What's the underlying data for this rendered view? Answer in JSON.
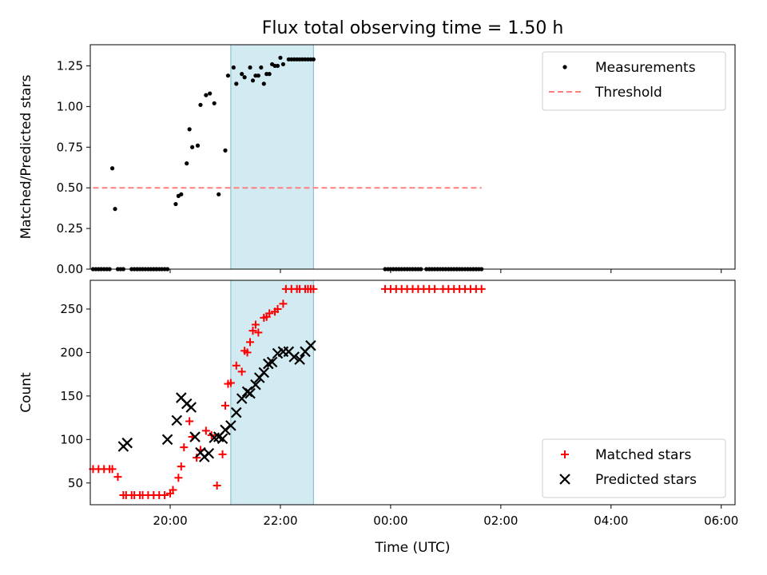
{
  "chart_data": [
    {
      "type": "scatter",
      "title": "Flux total observing time = 1.50 h",
      "xlabel": "",
      "ylabel": "Matched/Predicted stars",
      "ylim": [
        0,
        1.38
      ],
      "xlim": [
        -1.45,
        10.25
      ],
      "yticks": [
        0.0,
        0.25,
        0.5,
        0.75,
        1.0,
        1.25
      ],
      "ytick_labels": [
        "0.00",
        "0.25",
        "0.50",
        "0.75",
        "1.00",
        "1.25"
      ],
      "shaded_interval": [
        1.1,
        2.6
      ],
      "shade_color": "#add8e6",
      "legend": {
        "loc": "upper right",
        "entries": [
          "Measurements",
          "Threshold"
        ]
      },
      "series": [
        {
          "name": "Measurements",
          "marker": "dot",
          "color": "#000000",
          "x": [
            -1.4,
            -1.35,
            -1.3,
            -1.25,
            -1.2,
            -1.15,
            -1.1,
            -1.05,
            -1.0,
            -0.95,
            -0.9,
            -0.85,
            -0.7,
            -0.65,
            -0.6,
            -0.55,
            -0.5,
            -0.45,
            -0.4,
            -0.35,
            -0.3,
            -0.25,
            -0.2,
            -0.15,
            -0.1,
            -0.05,
            0.1,
            0.15,
            0.2,
            0.3,
            0.35,
            0.4,
            0.5,
            0.55,
            0.65,
            0.72,
            0.8,
            0.88,
            1.0,
            1.05,
            1.15,
            1.2,
            1.3,
            1.35,
            1.45,
            1.5,
            1.55,
            1.6,
            1.65,
            1.7,
            1.75,
            1.8,
            1.85,
            1.9,
            1.95,
            2.0,
            2.05,
            2.15,
            2.2,
            2.25,
            2.3,
            2.35,
            2.4,
            2.45,
            2.5,
            2.55,
            2.6,
            3.9,
            3.95,
            4.0,
            4.05,
            4.1,
            4.15,
            4.2,
            4.25,
            4.3,
            4.35,
            4.4,
            4.45,
            4.5,
            4.55,
            4.65,
            4.7,
            4.75,
            4.8,
            4.85,
            4.9,
            4.95,
            5.0,
            5.05,
            5.1,
            5.15,
            5.2,
            5.25,
            5.3,
            5.35,
            5.4,
            5.45,
            5.5,
            5.55,
            5.6,
            5.65
          ],
          "y": [
            0,
            0,
            0,
            0,
            0,
            0,
            0,
            0.62,
            0.37,
            0,
            0,
            0,
            0,
            0,
            0,
            0,
            0,
            0,
            0,
            0,
            0,
            0,
            0,
            0,
            0,
            0,
            0.4,
            0.45,
            0.46,
            0.65,
            0.86,
            0.75,
            0.76,
            1.01,
            1.07,
            1.08,
            1.02,
            0.46,
            0.73,
            1.19,
            1.24,
            1.14,
            1.2,
            1.18,
            1.24,
            1.16,
            1.19,
            1.19,
            1.24,
            1.14,
            1.2,
            1.2,
            1.26,
            1.25,
            1.25,
            1.3,
            1.26,
            1.29,
            1.29,
            1.29,
            1.29,
            1.29,
            1.29,
            1.29,
            1.29,
            1.29,
            1.29,
            0,
            0,
            0,
            0,
            0,
            0,
            0,
            0,
            0,
            0,
            0,
            0,
            0,
            0,
            0,
            0,
            0,
            0,
            0,
            0,
            0,
            0,
            0,
            0,
            0,
            0,
            0,
            0,
            0,
            0,
            0,
            0,
            0,
            0,
            0
          ]
        },
        {
          "name": "Threshold",
          "style": "dashed",
          "color": "#ff7f7f",
          "x": [
            -1.4,
            5.65
          ],
          "y": [
            0.5,
            0.5
          ]
        }
      ]
    },
    {
      "type": "scatter",
      "title": "",
      "xlabel": "Time (UTC)",
      "ylabel": "Count",
      "ylim": [
        25,
        283
      ],
      "xlim": [
        -1.45,
        10.25
      ],
      "yticks": [
        50,
        100,
        150,
        200,
        250
      ],
      "ytick_labels": [
        "50",
        "100",
        "150",
        "200",
        "250"
      ],
      "xticks": [
        0,
        2,
        4,
        6,
        8,
        10
      ],
      "xtick_labels": [
        "20:00",
        "22:00",
        "00:00",
        "02:00",
        "04:00",
        "06:00"
      ],
      "shaded_interval": [
        1.1,
        2.6
      ],
      "shade_color": "#add8e6",
      "legend": {
        "loc": "lower right",
        "entries": [
          "Matched stars",
          "Predicted stars"
        ]
      },
      "series": [
        {
          "name": "Matched stars",
          "marker": "plus",
          "color": "#ff0000",
          "x": [
            -1.4,
            -1.3,
            -1.2,
            -1.1,
            -1.05,
            -0.95,
            -0.85,
            -0.8,
            -0.7,
            -0.65,
            -0.55,
            -0.5,
            -0.4,
            -0.3,
            -0.2,
            -0.1,
            0.0,
            0.05,
            0.15,
            0.2,
            0.25,
            0.35,
            0.4,
            0.48,
            0.55,
            0.65,
            0.75,
            0.85,
            0.95,
            1.0,
            1.05,
            1.1,
            1.2,
            1.3,
            1.35,
            1.4,
            1.45,
            1.5,
            1.55,
            1.6,
            1.7,
            1.75,
            1.8,
            1.9,
            1.95,
            2.05,
            2.1,
            2.2,
            2.3,
            2.35,
            2.45,
            2.5,
            2.55,
            2.6,
            3.9,
            4.0,
            4.1,
            4.2,
            4.3,
            4.4,
            4.5,
            4.6,
            4.7,
            4.8,
            4.95,
            5.05,
            5.15,
            5.25,
            5.35,
            5.45,
            5.55,
            5.65
          ],
          "y": [
            66,
            66,
            66,
            66,
            66,
            57,
            36,
            36,
            36,
            36,
            36,
            36,
            36,
            36,
            36,
            36,
            38,
            42,
            56,
            69,
            91,
            121,
            103,
            79,
            88,
            110,
            105,
            47,
            83,
            139,
            164,
            165,
            185,
            178,
            202,
            200,
            212,
            225,
            232,
            223,
            240,
            241,
            245,
            247,
            250,
            256,
            273,
            273,
            273,
            273,
            273,
            273,
            273,
            273,
            273,
            273,
            273,
            273,
            273,
            273,
            273,
            273,
            273,
            273,
            273,
            273,
            273,
            273,
            273,
            273,
            273,
            273
          ]
        },
        {
          "name": "Predicted stars",
          "marker": "x",
          "color": "#000000",
          "x": [
            -0.85,
            -0.78,
            -0.05,
            0.12,
            0.2,
            0.3,
            0.38,
            0.45,
            0.55,
            0.62,
            0.7,
            0.8,
            0.88,
            0.95,
            1.0,
            1.1,
            1.2,
            1.3,
            1.4,
            1.45,
            1.55,
            1.62,
            1.7,
            1.78,
            1.85,
            1.95,
            2.05,
            2.15,
            2.25,
            2.35,
            2.45,
            2.55
          ],
          "y": [
            92,
            96,
            100,
            122,
            148,
            141,
            137,
            103,
            85,
            80,
            84,
            102,
            103,
            101,
            111,
            116,
            131,
            147,
            155,
            153,
            163,
            171,
            177,
            187,
            189,
            199,
            201,
            201,
            195,
            192,
            201,
            208
          ]
        }
      ]
    }
  ]
}
